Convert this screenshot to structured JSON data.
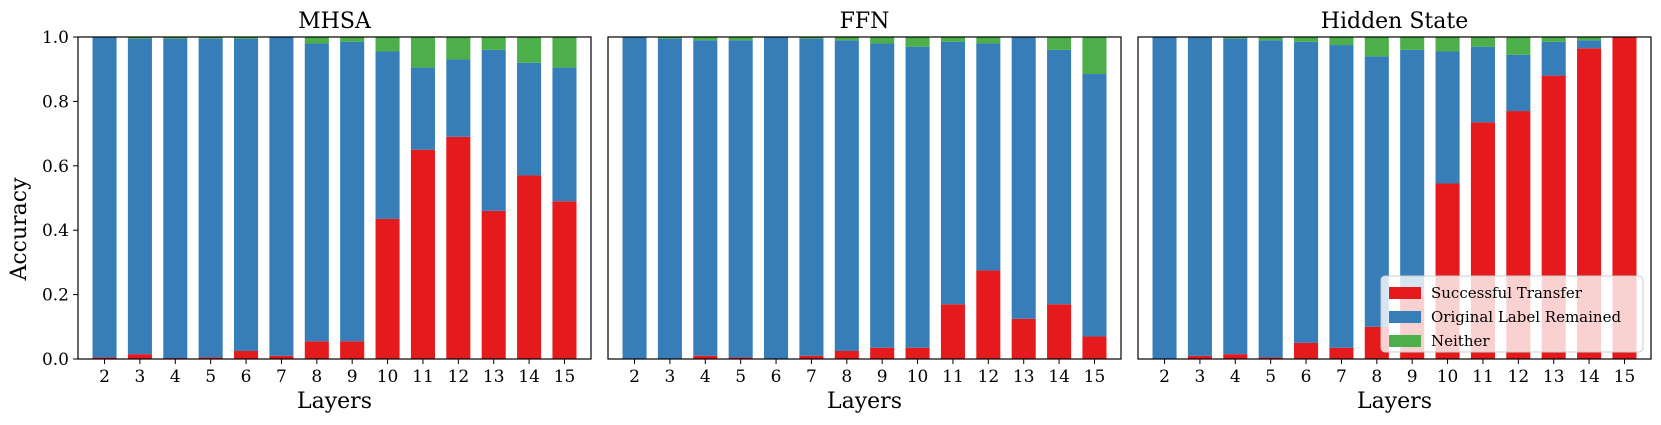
{
  "figure": {
    "ylabel": "Accuracy",
    "legend": {
      "placement": "lower-right of third panel",
      "entries": [
        {
          "label": "Successful Transfer",
          "color": "#e41a1c"
        },
        {
          "label": "Original Label Remained",
          "color": "#377eb8"
        },
        {
          "label": "Neither",
          "color": "#4daf4a"
        }
      ]
    }
  },
  "chart_data": [
    {
      "type": "bar",
      "stacked": true,
      "title": "MHSA",
      "xlabel": "Layers",
      "ylabel": "Accuracy",
      "ylim": [
        0,
        1.0
      ],
      "yticks": [
        "0.0",
        "0.2",
        "0.4",
        "0.6",
        "0.8",
        "1.0"
      ],
      "grid": false,
      "categories": [
        "2",
        "3",
        "4",
        "5",
        "6",
        "7",
        "8",
        "9",
        "10",
        "11",
        "12",
        "13",
        "14",
        "15"
      ],
      "series": [
        {
          "name": "Successful Transfer",
          "color": "#e41a1c",
          "values": [
            0.005,
            0.015,
            0.003,
            0.005,
            0.025,
            0.01,
            0.055,
            0.055,
            0.435,
            0.65,
            0.69,
            0.46,
            0.57,
            0.49
          ]
        },
        {
          "name": "Original Label Remained",
          "color": "#377eb8",
          "values": [
            0.995,
            0.98,
            0.992,
            0.99,
            0.97,
            0.99,
            0.925,
            0.93,
            0.52,
            0.255,
            0.24,
            0.5,
            0.35,
            0.415
          ]
        },
        {
          "name": "Neither",
          "color": "#4daf4a",
          "values": [
            0.0,
            0.005,
            0.005,
            0.005,
            0.005,
            0.0,
            0.02,
            0.015,
            0.045,
            0.095,
            0.07,
            0.04,
            0.08,
            0.095
          ]
        }
      ]
    },
    {
      "type": "bar",
      "stacked": true,
      "title": "FFN",
      "xlabel": "Layers",
      "ylabel": "",
      "ylim": [
        0,
        1.0
      ],
      "grid": false,
      "categories": [
        "2",
        "3",
        "4",
        "5",
        "6",
        "7",
        "8",
        "9",
        "10",
        "11",
        "12",
        "13",
        "14",
        "15"
      ],
      "series": [
        {
          "name": "Successful Transfer",
          "color": "#e41a1c",
          "values": [
            0.0,
            0.0,
            0.01,
            0.005,
            0.0,
            0.01,
            0.025,
            0.035,
            0.035,
            0.17,
            0.275,
            0.125,
            0.17,
            0.07
          ]
        },
        {
          "name": "Original Label Remained",
          "color": "#377eb8",
          "values": [
            1.0,
            0.995,
            0.98,
            0.985,
            1.0,
            0.985,
            0.965,
            0.945,
            0.935,
            0.815,
            0.705,
            0.875,
            0.79,
            0.815
          ]
        },
        {
          "name": "Neither",
          "color": "#4daf4a",
          "values": [
            0.0,
            0.005,
            0.01,
            0.01,
            0.0,
            0.005,
            0.01,
            0.02,
            0.03,
            0.015,
            0.02,
            0.0,
            0.04,
            0.115
          ]
        }
      ]
    },
    {
      "type": "bar",
      "stacked": true,
      "title": "Hidden State",
      "xlabel": "Layers",
      "ylabel": "",
      "ylim": [
        0,
        1.0
      ],
      "grid": false,
      "categories": [
        "2",
        "3",
        "4",
        "5",
        "6",
        "7",
        "8",
        "9",
        "10",
        "11",
        "12",
        "13",
        "14",
        "15"
      ],
      "series": [
        {
          "name": "Successful Transfer",
          "color": "#e41a1c",
          "values": [
            0.0,
            0.01,
            0.015,
            0.005,
            0.05,
            0.035,
            0.1,
            0.2,
            0.545,
            0.735,
            0.77,
            0.88,
            0.965,
            1.0
          ]
        },
        {
          "name": "Original Label Remained",
          "color": "#377eb8",
          "values": [
            1.0,
            0.99,
            0.98,
            0.985,
            0.935,
            0.94,
            0.84,
            0.76,
            0.41,
            0.235,
            0.175,
            0.105,
            0.025,
            0.0
          ]
        },
        {
          "name": "Neither",
          "color": "#4daf4a",
          "values": [
            0.0,
            0.0,
            0.005,
            0.01,
            0.015,
            0.025,
            0.06,
            0.04,
            0.045,
            0.03,
            0.055,
            0.015,
            0.01,
            0.0
          ]
        }
      ]
    }
  ]
}
